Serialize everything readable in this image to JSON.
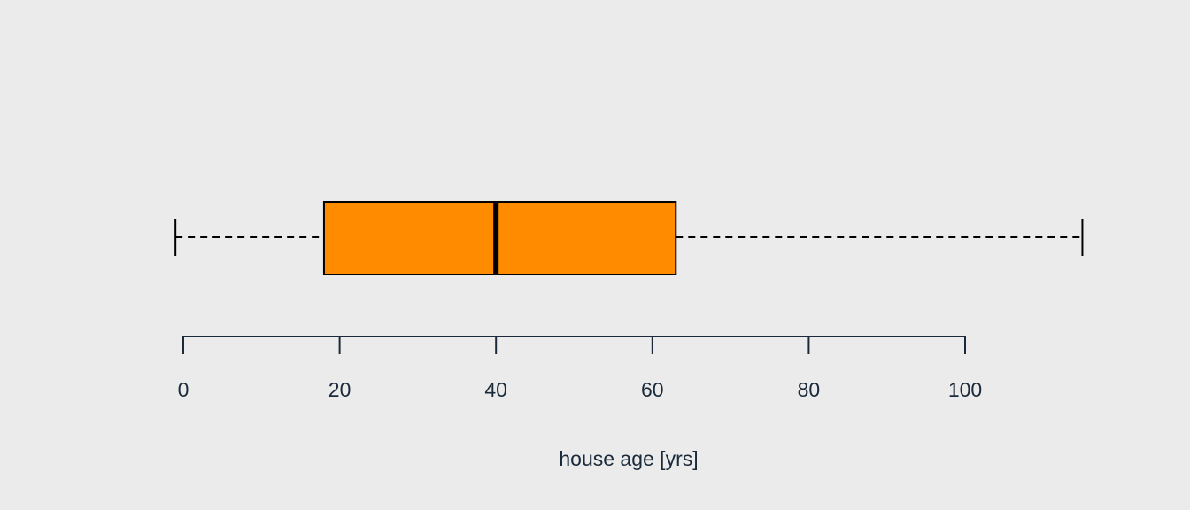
{
  "chart_data": {
    "type": "boxplot",
    "orientation": "horizontal",
    "title": "",
    "xlabel": "house age [yrs]",
    "ylabel": "",
    "xlim": [
      -1,
      115
    ],
    "ticks": [
      0,
      20,
      40,
      60,
      80,
      100
    ],
    "tick_labels": [
      "0",
      "20",
      "40",
      "60",
      "80",
      "100"
    ],
    "grid": false,
    "box": {
      "whisker_low": -1,
      "q1": 18,
      "median": 40,
      "q3": 63,
      "whisker_high": 115
    },
    "colors": {
      "background": "#ebebeb",
      "box_fill": "#ff8c00",
      "box_stroke": "#000000",
      "axis": "#1a2a3a"
    }
  }
}
